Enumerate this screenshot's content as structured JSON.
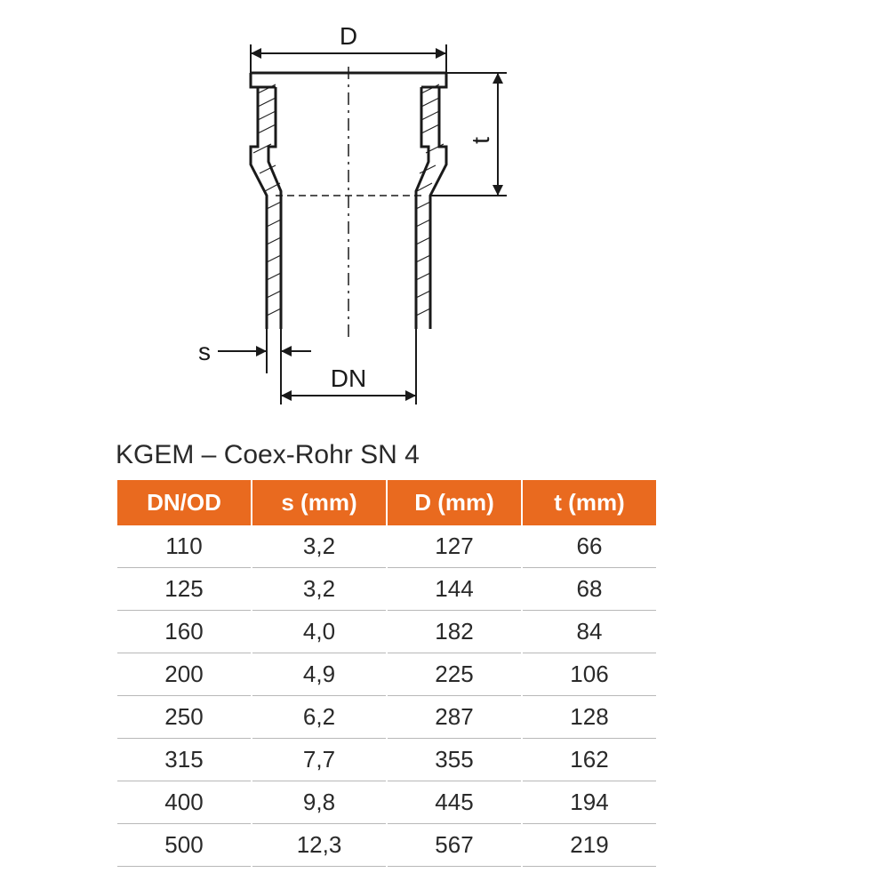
{
  "diagram": {
    "stroke": "#1a1a1a",
    "stroke_width_main": 3,
    "stroke_width_dim": 2,
    "labels": {
      "D": "D",
      "t": "t",
      "s": "s",
      "DN": "DN"
    },
    "label_fontsize": 28,
    "label_color": "#1a1a1a"
  },
  "title": "KGEM – Coex-Rohr SN 4",
  "title_fontsize": 30,
  "title_color": "#2a2a2a",
  "table": {
    "header_bg": "#e96a1f",
    "header_fg": "#ffffff",
    "header_fontsize": 26,
    "row_fontsize": 26,
    "row_color": "#2a2a2a",
    "row_border_color": "#b8b8b8",
    "columns": [
      "DN/OD",
      "s (mm)",
      "D (mm)",
      "t (mm)"
    ],
    "rows": [
      [
        "110",
        "3,2",
        "127",
        "66"
      ],
      [
        "125",
        "3,2",
        "144",
        "68"
      ],
      [
        "160",
        "4,0",
        "182",
        "84"
      ],
      [
        "200",
        "4,9",
        "225",
        "106"
      ],
      [
        "250",
        "6,2",
        "287",
        "128"
      ],
      [
        "315",
        "7,7",
        "355",
        "162"
      ],
      [
        "400",
        "9,8",
        "445",
        "194"
      ],
      [
        "500",
        "12,3",
        "567",
        "219"
      ]
    ]
  }
}
